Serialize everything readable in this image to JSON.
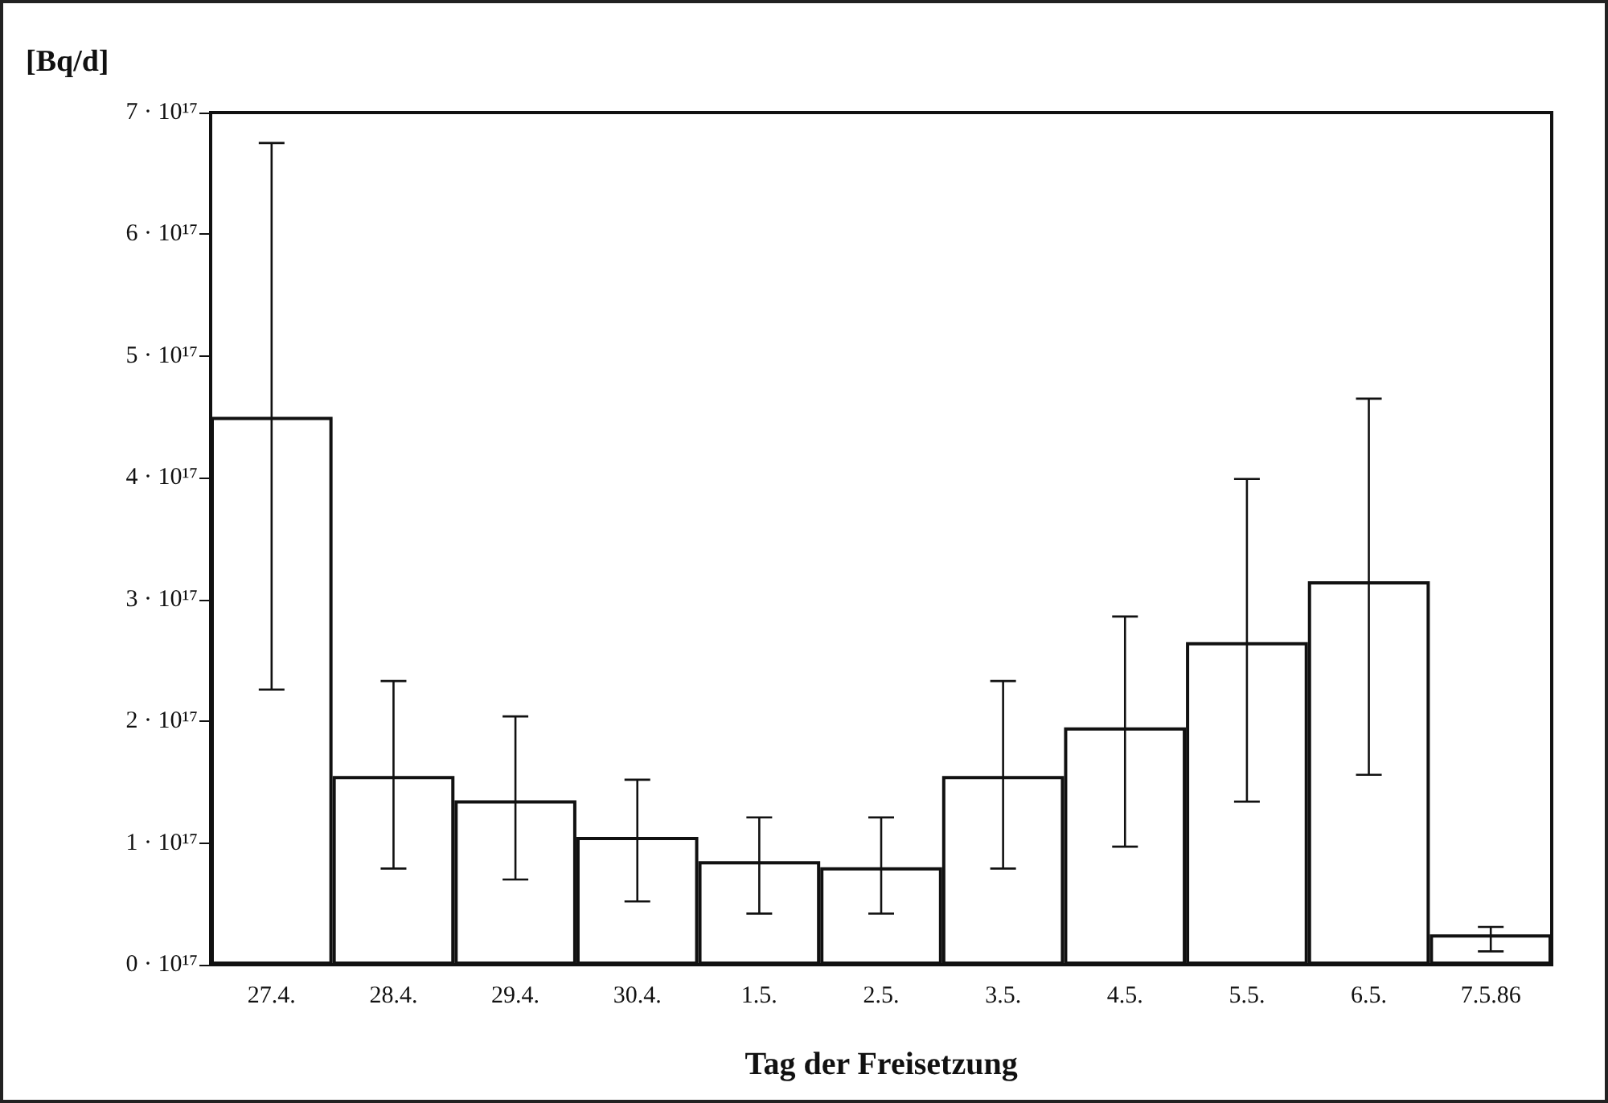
{
  "chart_data": {
    "type": "bar",
    "ylabel": "[Bq/d]",
    "xlabel": "Tag der Freisetzung",
    "categories": [
      "27.4.",
      "28.4.",
      "29.4.",
      "30.4.",
      "1.5.",
      "2.5.",
      "3.5.",
      "4.5.",
      "5.5.",
      "6.5.",
      "7.5.86"
    ],
    "values": [
      4.5e+17,
      1.55e+17,
      1.35e+17,
      1.05e+17,
      8.5e+16,
      8e+16,
      1.55e+17,
      1.95e+17,
      2.65e+17,
      3.15e+17,
      2.5e+16
    ],
    "errors": [
      [
        2.26e+17,
        6.75e+17
      ],
      [
        7.9e+16,
        2.33e+17
      ],
      [
        7e+16,
        2.04e+17
      ],
      [
        5.2e+16,
        1.52e+17
      ],
      [
        4.2e+16,
        1.21e+17
      ],
      [
        4.2e+16,
        1.21e+17
      ],
      [
        7.9e+16,
        2.33e+17
      ],
      [
        9.7e+16,
        2.86e+17
      ],
      [
        1.34e+17,
        3.99e+17
      ],
      [
        1.56e+17,
        4.65e+17
      ],
      [
        1.1e+16,
        3.1e+16
      ]
    ],
    "color": "#ffffff",
    "ylim": [
      0,
      7e+17
    ],
    "yticks": [
      {
        "value": 0,
        "label": "0 · 10¹⁷"
      },
      {
        "value": 1e+17,
        "label": "1 · 10¹⁷"
      },
      {
        "value": 2e+17,
        "label": "2 · 10¹⁷"
      },
      {
        "value": 3e+17,
        "label": "3 · 10¹⁷"
      },
      {
        "value": 4e+17,
        "label": "4 · 10¹⁷"
      },
      {
        "value": 5e+17,
        "label": "5 · 10¹⁷"
      },
      {
        "value": 6e+17,
        "label": "6 · 10¹⁷"
      },
      {
        "value": 7e+17,
        "label": "7 · 10¹⁷"
      }
    ],
    "grid": false
  }
}
